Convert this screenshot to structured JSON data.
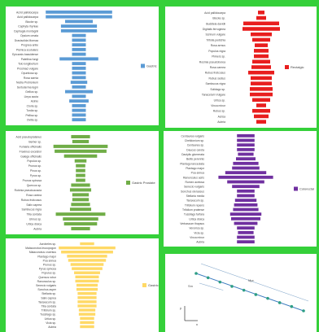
{
  "chart_data": [
    {
      "type": "bar",
      "panel": "p1",
      "color": "#5b9bd5",
      "series": [
        {
          "name": "Gastric",
          "values": [
            24,
            24,
            10,
            13,
            13,
            5,
            5,
            5,
            5,
            5,
            14,
            5,
            5,
            5,
            5,
            6,
            5,
            10,
            5,
            7,
            5,
            5,
            5,
            5
          ]
        }
      ],
      "categories": [
        "Acrid pallidocarpa",
        "Acid pallidocarpa",
        "Blocke sp.",
        "Caphyta rhyniae",
        "Caphagia montagnii",
        "Opsium omata",
        "Drasisolida Mornaa",
        "Prognea antie",
        "Pismica scutulans",
        "Epicarsis bassidense",
        "Patellina fungi",
        "Tolo longibertum",
        "Prosinaci vulgare",
        "Opuntiosa sp.",
        "Rosa sarnia",
        "Nubla Prohionium",
        "Sertoderma tegm",
        "Gellius sp.",
        "Lleya acuta",
        "Asinio",
        "Cloria sp.",
        "Tordia sp.",
        "Pellisa sp.",
        "Ovitia sp."
      ]
    },
    {
      "type": "bar",
      "panel": "p2",
      "color": "#e81e1e",
      "series": [
        {
          "name": "Rectalgic",
          "values": [
            4,
            6,
            22,
            23,
            13,
            11,
            8,
            9,
            9,
            11,
            12,
            16,
            13,
            13,
            14,
            14,
            11,
            6,
            11,
            9,
            6
          ]
        }
      ],
      "categories": [
        "Acid pallidocarpa",
        "Blocke sp.",
        "Buddleia davidii",
        "Digitalis ferruginea",
        "Scrinum vulgare",
        "Trifolia pedichia",
        "Rosa armus",
        "Populus nigra",
        "Pinkers sp.",
        "Rosmia pseudoborea",
        "Rosa carnea",
        "Rubus fruticosus",
        "Rubus sestus",
        "Sambucus nigra",
        "Solidago sp.",
        "Tanacetum Vulgare",
        "Urtica sp.",
        "Vinca minor",
        "Rubus sp.",
        "Acrisa",
        "Aubria"
      ]
    },
    {
      "type": "bar",
      "panel": "p3",
      "color": "#70ad47",
      "series": [
        {
          "name": "Gastric Prostate",
          "values": [
            8,
            7,
            23,
            22,
            14,
            5,
            4,
            4,
            4,
            4,
            8,
            9,
            7,
            7,
            8,
            9,
            21,
            15,
            14,
            8
          ]
        }
      ],
      "categories": [
        "Acid pseudoplatanus",
        "Berber sp.",
        "Fumaria officinalis",
        "Fraxinus excelsior",
        "Galega officinalis",
        "Populus sp.",
        "Prunus sp.",
        "Pinus sp.",
        "Pyrus sp.",
        "Prunus spinosa",
        "Quercus sp.",
        "Robinia pseudoacacia",
        "Rosa canina",
        "Rubus fruticosus",
        "Salix caprea",
        "Sambucus nigra",
        "Tilia cordata",
        "Ulmus sp.",
        "Urtica dioica",
        "Aubria"
      ]
    },
    {
      "type": "bar",
      "panel": "p4",
      "color": "#7030a0",
      "series": [
        {
          "name": "Colorectal",
          "values": [
            9,
            9,
            9,
            9,
            8,
            10,
            13,
            14,
            21,
            28,
            19,
            14,
            9,
            9,
            11,
            12,
            13,
            16,
            15,
            12,
            9,
            8,
            9,
            9
          ]
        }
      ],
      "categories": [
        "Centaurea vulgaris",
        "Chelidonium sp.",
        "Centaurea sp.",
        "Daucus carota",
        "Dactylis glomerata",
        "Bellis perennis",
        "Plantago lanceolata",
        "Plantago major",
        "Poa annua",
        "Ranunculus acris",
        "Rumex acetosa",
        "Senecio vulgaris",
        "Sonchus oleraceus",
        "Stellaria media",
        "Taraxacum sp.",
        "Trifolium repens",
        "Trifolium pratense",
        "Tussilago farfara",
        "Urtica dioica",
        "Verbascum thapsus",
        "Veronica sp.",
        "Vicia sp.",
        "Vinca minor",
        "Aubria"
      ]
    },
    {
      "type": "bar",
      "panel": "p5",
      "color": "#ffd966",
      "series": [
        {
          "name": "Gastric",
          "values": [
            6,
            24,
            22,
            17,
            16,
            14,
            13,
            11,
            10,
            10,
            9,
            9,
            8,
            8,
            8,
            8,
            7,
            7,
            6,
            6,
            6
          ]
        }
      ],
      "categories": [
        "Acrobeles sp.",
        "Malaconotus leucopogon",
        "Malaconotus cruentus",
        "Plantago major",
        "Poa annua",
        "Prunus sp.",
        "Pyrus spinosa",
        "Populus sp.",
        "Quercus robur",
        "Ranunculus sp.",
        "Senecio vulgaris",
        "Sonchus asper",
        "Stellaria sp.",
        "Salix caprea",
        "Taraxacum sp.",
        "Tilia cordata",
        "Trifolium sp.",
        "Tussilago sp.",
        "Urtica sp.",
        "Vicia sp.",
        "Aubria"
      ]
    },
    {
      "type": "scatter",
      "panel": "p6",
      "color": "#2e9e85",
      "x": [
        1,
        2,
        3,
        4,
        5,
        6,
        7,
        8,
        9,
        10
      ],
      "y": [
        10,
        9.1,
        8.2,
        7.3,
        6.5,
        5.6,
        4.8,
        3.9,
        3.1,
        2.2
      ],
      "annotations": [
        "Mpr",
        "Sm"
      ],
      "axis_labels": [
        "y",
        "x"
      ]
    }
  ]
}
